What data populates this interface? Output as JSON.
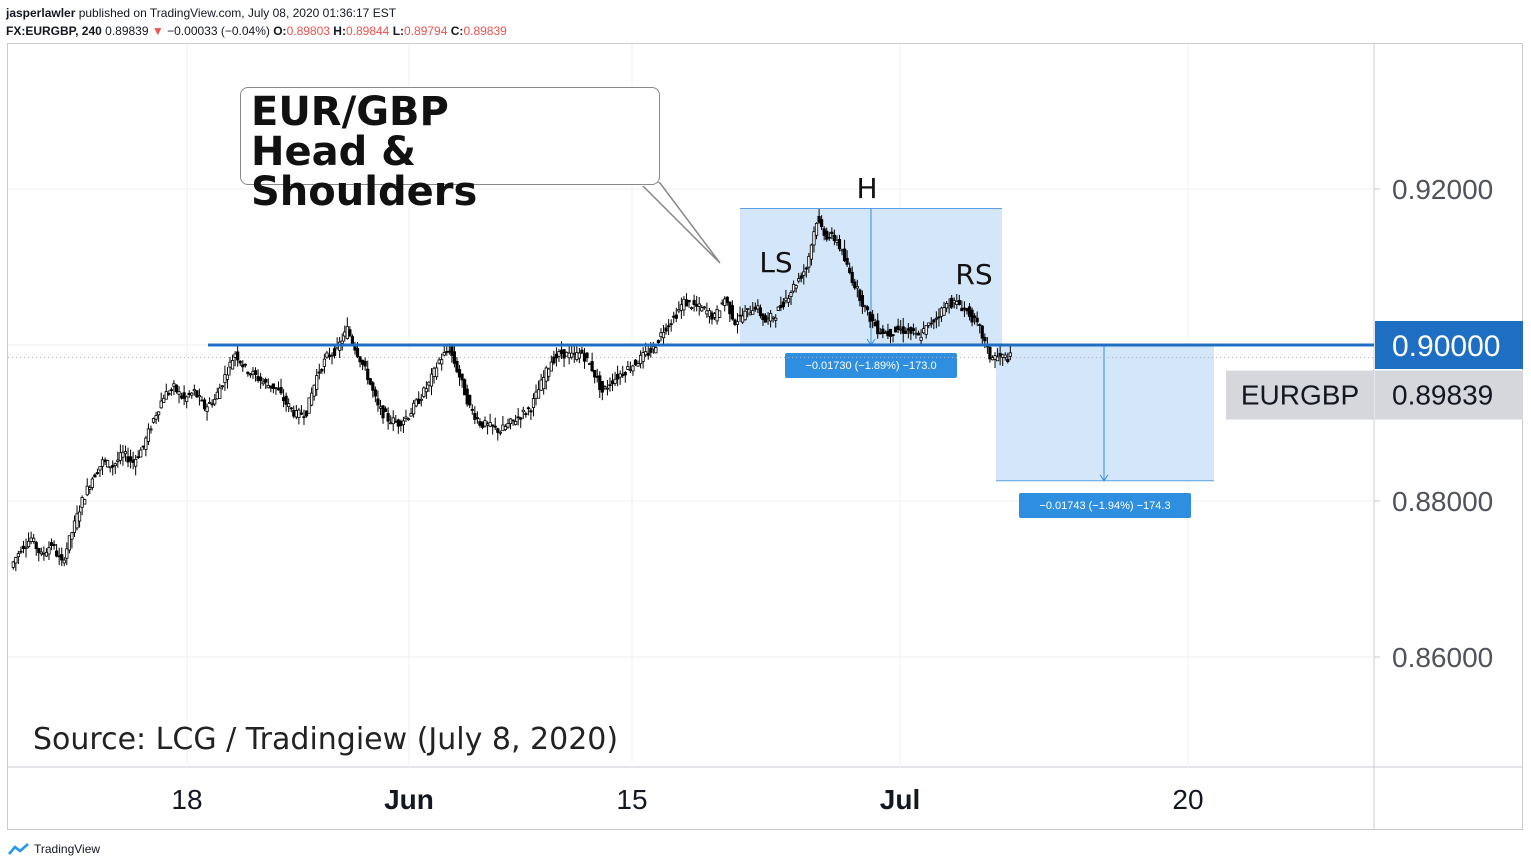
{
  "header": {
    "author": "jasperlawler",
    "published": " published on TradingView.com, July 08, 2020 01:36:17 EST",
    "symbol_line": "FX:EURGBP, 240",
    "last": "0.89839",
    "change": "−0.00033 (−0.04%)",
    "o_label": "O:",
    "o": "0.89803",
    "h_label": "H:",
    "h": "0.89844",
    "l_label": "L:",
    "l": "0.89794",
    "c_label": "C:",
    "c": "0.89839"
  },
  "callout": {
    "line1": "EUR/GBP",
    "line2": "Head & Shoulders"
  },
  "source": "Source: LCG / Tradingiew (July 8, 2020)",
  "footer": {
    "brand": "TradingView"
  },
  "colors": {
    "up": "#000000",
    "neckline": "#1e6fc3",
    "box": "#cfe3f8",
    "badge": "#2e8fe0",
    "axis_text": "#50535e"
  },
  "chart_data": {
    "type": "candlestick",
    "symbol": "EURGBP",
    "ylim": [
      0.845,
      0.9355
    ],
    "y_ticks": [
      "0.92000",
      "0.88000",
      "0.86000"
    ],
    "x_ticks": [
      "18",
      "Jun",
      "15",
      "Jul",
      "20"
    ],
    "neckline": {
      "value": 0.9,
      "label": "0.90000"
    },
    "last_price": {
      "value": 0.89839,
      "label": "0.89839",
      "name": "EURGBP"
    },
    "pattern_labels": [
      "LS",
      "H",
      "RS"
    ],
    "measure_boxes": [
      {
        "top": 0.9175,
        "bottom": 0.9,
        "label": "−0.01730 (−1.89%) −173.0"
      },
      {
        "top": 0.9,
        "bottom": 0.8826,
        "label": "−0.01743 (−1.94%) −174.3"
      }
    ],
    "close_path": [
      [
        0,
        0.8715
      ],
      [
        1,
        0.874
      ],
      [
        2,
        0.8752
      ],
      [
        3,
        0.873
      ],
      [
        4,
        0.8745
      ],
      [
        5,
        0.872
      ],
      [
        6,
        0.876
      ],
      [
        7,
        0.88
      ],
      [
        8,
        0.883
      ],
      [
        9,
        0.885
      ],
      [
        10,
        0.8845
      ],
      [
        11,
        0.886
      ],
      [
        12,
        0.885
      ],
      [
        13,
        0.887
      ],
      [
        14,
        0.8905
      ],
      [
        15,
        0.8935
      ],
      [
        16,
        0.8945
      ],
      [
        17,
        0.893
      ],
      [
        18,
        0.894
      ],
      [
        19,
        0.892
      ],
      [
        20,
        0.893
      ],
      [
        21,
        0.896
      ],
      [
        22,
        0.899
      ],
      [
        23,
        0.897
      ],
      [
        24,
        0.896
      ],
      [
        25,
        0.895
      ],
      [
        26,
        0.8945
      ],
      [
        27,
        0.8925
      ],
      [
        28,
        0.891
      ],
      [
        29,
        0.8915
      ],
      [
        30,
        0.896
      ],
      [
        31,
        0.8985
      ],
      [
        32,
        0.8995
      ],
      [
        33,
        0.902
      ],
      [
        34,
        0.899
      ],
      [
        35,
        0.896
      ],
      [
        36,
        0.892
      ],
      [
        37,
        0.8905
      ],
      [
        38,
        0.89
      ],
      [
        39,
        0.891
      ],
      [
        40,
        0.893
      ],
      [
        41,
        0.895
      ],
      [
        42,
        0.898
      ],
      [
        43,
        0.8995
      ],
      [
        44,
        0.896
      ],
      [
        45,
        0.892
      ],
      [
        46,
        0.89
      ],
      [
        47,
        0.8895
      ],
      [
        48,
        0.889
      ],
      [
        49,
        0.89
      ],
      [
        50,
        0.891
      ],
      [
        51,
        0.892
      ],
      [
        52,
        0.895
      ],
      [
        53,
        0.898
      ],
      [
        54,
        0.899
      ],
      [
        55,
        0.8985
      ],
      [
        56,
        0.899
      ],
      [
        57,
        0.897
      ],
      [
        58,
        0.894
      ],
      [
        59,
        0.8955
      ],
      [
        60,
        0.8965
      ],
      [
        61,
        0.8975
      ],
      [
        62,
        0.8985
      ],
      [
        63,
        0.8995
      ],
      [
        64,
        0.902
      ],
      [
        65,
        0.9035
      ],
      [
        66,
        0.9055
      ],
      [
        67,
        0.905
      ],
      [
        68,
        0.9045
      ],
      [
        69,
        0.9035
      ],
      [
        70,
        0.906
      ],
      [
        71,
        0.903
      ],
      [
        72,
        0.904
      ],
      [
        73,
        0.905
      ],
      [
        74,
        0.903
      ],
      [
        75,
        0.904
      ],
      [
        76,
        0.906
      ],
      [
        77,
        0.908
      ],
      [
        78,
        0.91
      ],
      [
        79,
        0.916
      ],
      [
        80,
        0.914
      ],
      [
        81,
        0.9135
      ],
      [
        82,
        0.91
      ],
      [
        83,
        0.907
      ],
      [
        84,
        0.904
      ],
      [
        85,
        0.902
      ],
      [
        86,
        0.9015
      ],
      [
        87,
        0.902
      ],
      [
        88,
        0.9018
      ],
      [
        89,
        0.901
      ],
      [
        90,
        0.9025
      ],
      [
        91,
        0.904
      ],
      [
        92,
        0.9055
      ],
      [
        93,
        0.9052
      ],
      [
        94,
        0.904
      ],
      [
        95,
        0.902
      ],
      [
        96,
        0.8985
      ],
      [
        97,
        0.8984
      ],
      [
        98,
        0.8984
      ]
    ]
  }
}
